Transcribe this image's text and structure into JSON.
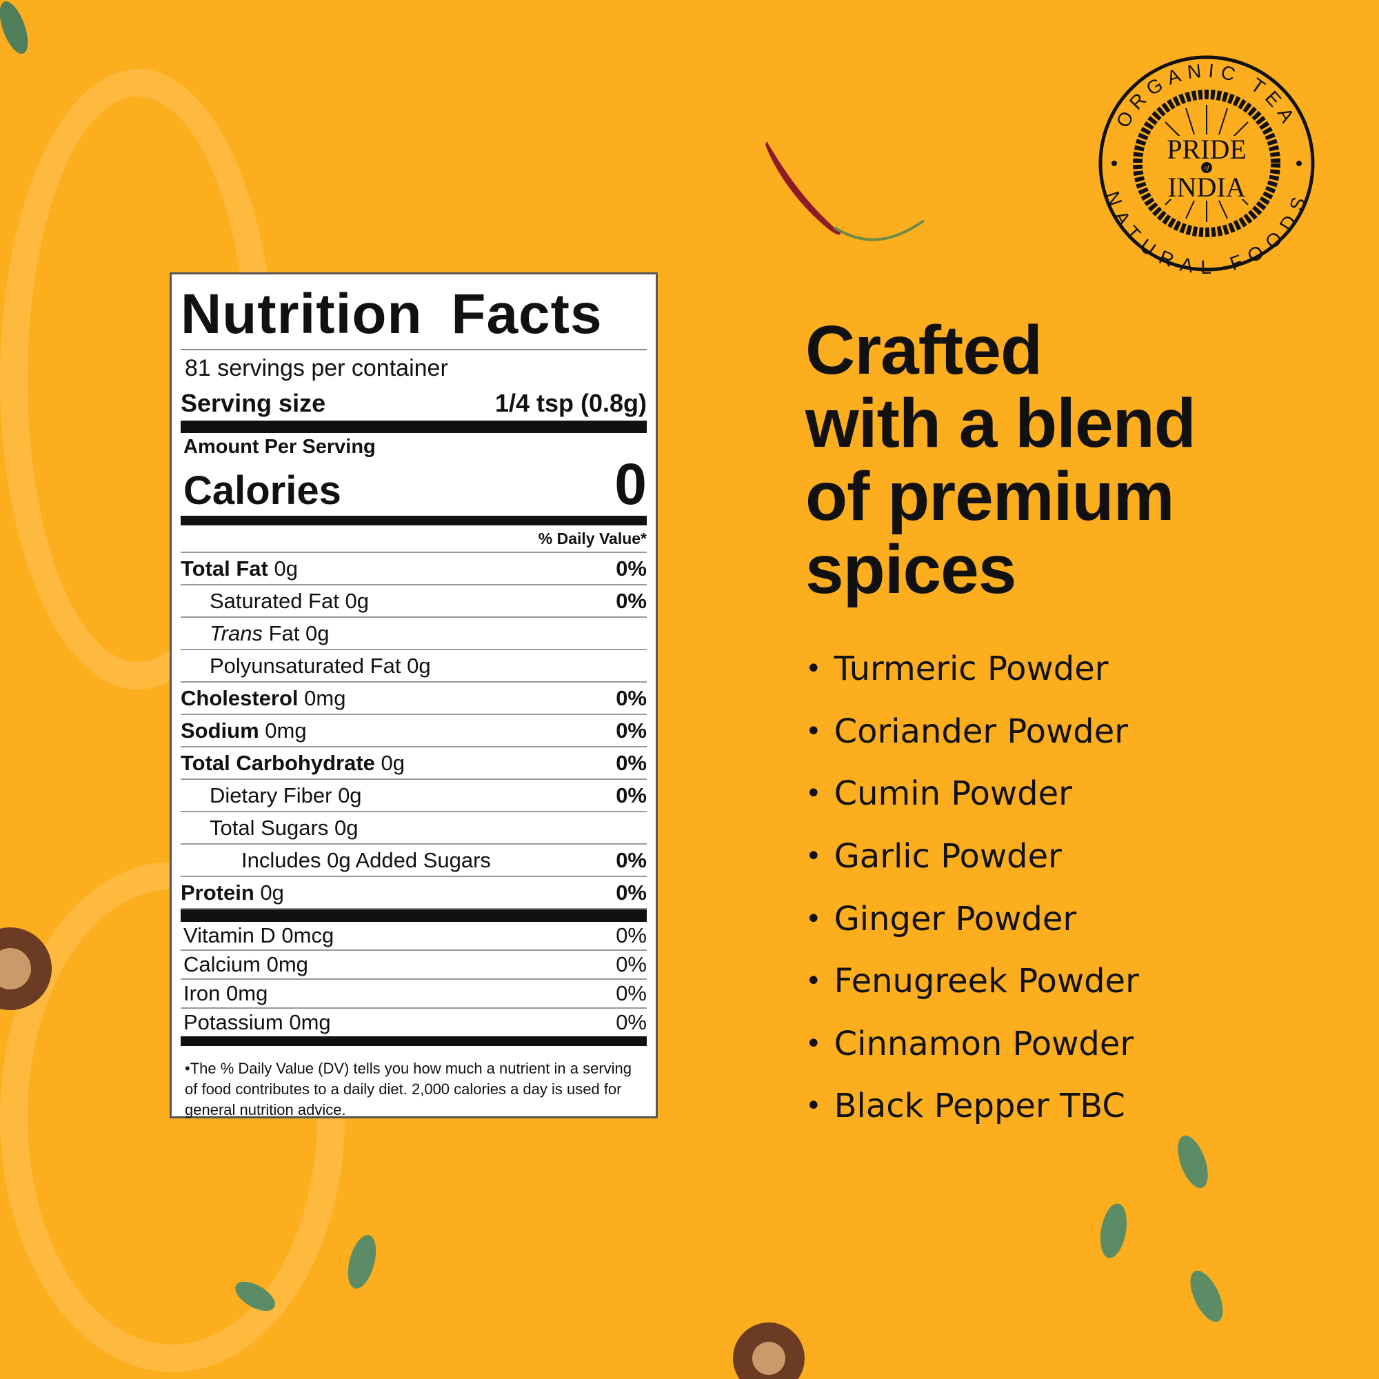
{
  "brand": {
    "logo_top": "ORGANIC TEA",
    "logo_bottom": "NATURAL FOODS",
    "logo_main_1": "PRIDE",
    "logo_of": "of",
    "logo_main_2": "INDIA"
  },
  "colors": {
    "background": "#fcae1e",
    "text": "#111111"
  },
  "nutrition": {
    "title": "Nutrition Facts",
    "servings": "81 servings per container",
    "serving_size_label": "Serving size",
    "serving_size_value": "1/4 tsp (0.8g)",
    "amount_per_serving": "Amount Per Serving",
    "calories_label": "Calories",
    "calories_value": "0",
    "dv_header": "% Daily Value*",
    "rows": [
      {
        "name": "Total Fat",
        "amount": "0g",
        "dv": "0%"
      },
      {
        "name": "Saturated Fat",
        "amount": "0g",
        "dv": "0%"
      },
      {
        "name": "Trans",
        "amount": "Fat 0g",
        "dv": ""
      },
      {
        "name": "Polyunsaturated Fat",
        "amount": "0g",
        "dv": ""
      },
      {
        "name": "Cholesterol",
        "amount": "0mg",
        "dv": "0%"
      },
      {
        "name": "Sodium",
        "amount": "0mg",
        "dv": "0%"
      },
      {
        "name": "Total Carbohydrate",
        "amount": "0g",
        "dv": "0%"
      },
      {
        "name": "Dietary Fiber",
        "amount": "0g",
        "dv": "0%"
      },
      {
        "name": "Total Sugars",
        "amount": "0g",
        "dv": ""
      },
      {
        "name": "Includes 0g Added Sugars",
        "amount": "",
        "dv": "0%"
      },
      {
        "name": "Protein",
        "amount": "0g",
        "dv": "0%"
      }
    ],
    "vitamins": [
      {
        "name": "Vitamin D 0mcg",
        "dv": "0%"
      },
      {
        "name": "Calcium 0mg",
        "dv": "0%"
      },
      {
        "name": "Iron 0mg",
        "dv": "0%"
      },
      {
        "name": "Potassium 0mg",
        "dv": "0%"
      }
    ],
    "footnote": "The % Daily Value (DV) tells you how much a nutrient in a serving of food contributes to a daily diet. 2,000 calories a day is used for general nutrition advice."
  },
  "heading": {
    "line1": "Crafted",
    "line2": "with a blend",
    "line3": "of premium",
    "line4": "spices"
  },
  "spices": [
    "Turmeric Powder",
    "Coriander Powder",
    "Cumin Powder",
    "Garlic Powder",
    "Ginger Powder",
    "Fenugreek Powder",
    "Cinnamon Powder",
    "Black Pepper TBC"
  ]
}
